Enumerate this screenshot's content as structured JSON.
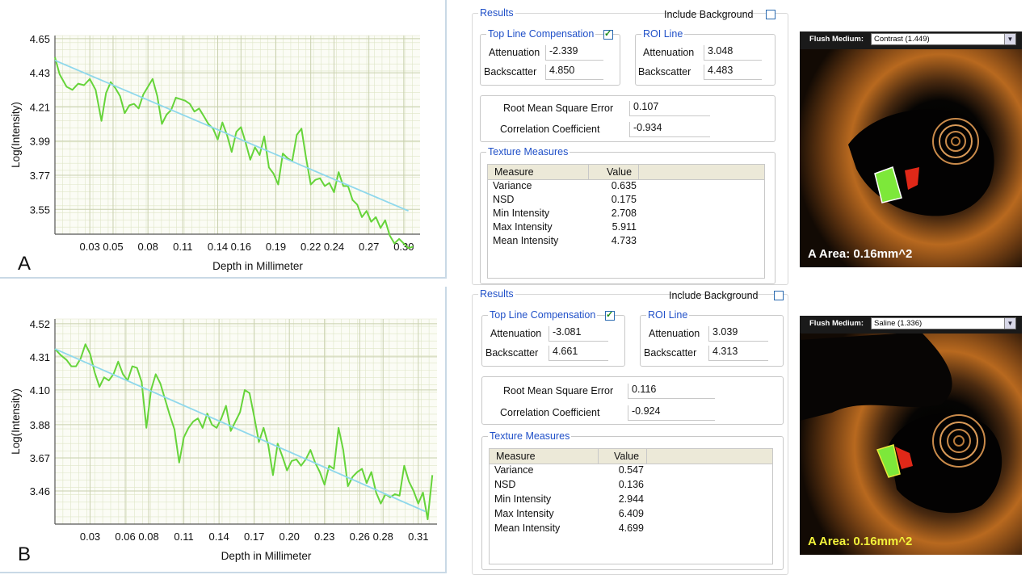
{
  "panel_labels": [
    "A",
    "B"
  ],
  "chart_data": [
    {
      "type": "line",
      "panel": "A",
      "xlabel": "Depth in Millimeter",
      "ylabel": "Log(Intensity)",
      "xticks": [
        "0.03",
        "0.05",
        "0.08",
        "0.11",
        "0.14",
        "0.16",
        "0.19",
        "0.22",
        "0.24",
        "0.27",
        "0.30"
      ],
      "yticks": [
        "3.55",
        "3.77",
        "3.99",
        "4.21",
        "4.43",
        "4.65"
      ],
      "xlim": [
        0.0,
        0.314
      ],
      "ylim": [
        3.39,
        4.67
      ],
      "grid": true,
      "series": [
        {
          "color": "#66d43a",
          "x": [
            0.0,
            0.004,
            0.01,
            0.015,
            0.02,
            0.025,
            0.03,
            0.035,
            0.04,
            0.044,
            0.048,
            0.052,
            0.056,
            0.06,
            0.064,
            0.068,
            0.072,
            0.076,
            0.08,
            0.084,
            0.088,
            0.092,
            0.096,
            0.1,
            0.104,
            0.108,
            0.112,
            0.116,
            0.12,
            0.124,
            0.128,
            0.132,
            0.136,
            0.14,
            0.144,
            0.148,
            0.152,
            0.156,
            0.16,
            0.164,
            0.168,
            0.172,
            0.176,
            0.18,
            0.184,
            0.188,
            0.192,
            0.196,
            0.2,
            0.204,
            0.208,
            0.212,
            0.216,
            0.22,
            0.224,
            0.228,
            0.232,
            0.236,
            0.24,
            0.244,
            0.248,
            0.252,
            0.256,
            0.26,
            0.264,
            0.268,
            0.272,
            0.276,
            0.28,
            0.284,
            0.288,
            0.292,
            0.296,
            0.3,
            0.304,
            0.308
          ],
          "y": [
            4.53,
            4.42,
            4.34,
            4.32,
            4.36,
            4.35,
            4.39,
            4.32,
            4.12,
            4.3,
            4.37,
            4.33,
            4.28,
            4.17,
            4.22,
            4.23,
            4.2,
            4.29,
            4.34,
            4.39,
            4.28,
            4.1,
            4.16,
            4.19,
            4.27,
            4.26,
            4.25,
            4.23,
            4.18,
            4.2,
            4.15,
            4.1,
            4.07,
            4.0,
            4.11,
            4.03,
            3.92,
            4.05,
            4.08,
            3.98,
            3.87,
            3.95,
            3.9,
            4.02,
            3.82,
            3.78,
            3.71,
            3.91,
            3.88,
            3.86,
            4.03,
            4.07,
            3.88,
            3.71,
            3.74,
            3.75,
            3.7,
            3.72,
            3.66,
            3.79,
            3.7,
            3.7,
            3.61,
            3.58,
            3.5,
            3.54,
            3.47,
            3.5,
            3.43,
            3.48,
            3.38,
            3.33,
            3.36,
            3.33,
            3.3,
            3.31
          ]
        },
        {
          "color": "#8fd8ec",
          "x": [
            0.0,
            0.304
          ],
          "y": [
            4.51,
            3.54
          ]
        }
      ]
    },
    {
      "type": "line",
      "panel": "B",
      "xlabel": "Depth in Millimeter",
      "ylabel": "Log(Intensity)",
      "xticks": [
        "0.03",
        "0.06",
        "0.08",
        "0.11",
        "0.14",
        "0.17",
        "0.20",
        "0.23",
        "0.26",
        "0.28",
        "0.31"
      ],
      "yticks": [
        "3.46",
        "3.67",
        "3.88",
        "4.10",
        "4.31",
        "4.52"
      ],
      "xlim": [
        0.0,
        0.326
      ],
      "ylim": [
        3.25,
        4.55
      ],
      "grid": true,
      "series": [
        {
          "color": "#66d43a",
          "x": [
            0.0,
            0.005,
            0.01,
            0.014,
            0.018,
            0.022,
            0.026,
            0.03,
            0.034,
            0.038,
            0.042,
            0.046,
            0.05,
            0.054,
            0.058,
            0.062,
            0.066,
            0.07,
            0.074,
            0.078,
            0.082,
            0.086,
            0.09,
            0.094,
            0.098,
            0.102,
            0.106,
            0.11,
            0.114,
            0.118,
            0.122,
            0.126,
            0.13,
            0.134,
            0.138,
            0.142,
            0.146,
            0.15,
            0.154,
            0.158,
            0.162,
            0.166,
            0.17,
            0.174,
            0.178,
            0.182,
            0.186,
            0.19,
            0.194,
            0.198,
            0.202,
            0.206,
            0.21,
            0.214,
            0.218,
            0.222,
            0.226,
            0.23,
            0.234,
            0.238,
            0.242,
            0.246,
            0.25,
            0.254,
            0.258,
            0.262,
            0.266,
            0.27,
            0.274,
            0.278,
            0.282,
            0.286,
            0.29,
            0.294,
            0.298,
            0.302,
            0.306,
            0.31,
            0.314,
            0.318,
            0.322
          ],
          "y": [
            4.36,
            4.32,
            4.29,
            4.25,
            4.25,
            4.3,
            4.39,
            4.33,
            4.21,
            4.12,
            4.18,
            4.16,
            4.2,
            4.28,
            4.2,
            4.16,
            4.25,
            4.24,
            4.15,
            3.86,
            4.1,
            4.2,
            4.14,
            4.04,
            3.94,
            3.85,
            3.64,
            3.8,
            3.86,
            3.9,
            3.92,
            3.86,
            3.95,
            3.88,
            3.86,
            3.92,
            4.0,
            3.84,
            3.9,
            3.96,
            4.1,
            4.08,
            3.93,
            3.77,
            3.86,
            3.75,
            3.56,
            3.76,
            3.68,
            3.59,
            3.65,
            3.66,
            3.62,
            3.66,
            3.72,
            3.64,
            3.58,
            3.5,
            3.62,
            3.6,
            3.86,
            3.72,
            3.49,
            3.55,
            3.58,
            3.6,
            3.51,
            3.58,
            3.45,
            3.38,
            3.44,
            3.42,
            3.44,
            3.43,
            3.62,
            3.52,
            3.46,
            3.38,
            3.45,
            3.28,
            3.56
          ]
        },
        {
          "color": "#8fd8ec",
          "x": [
            0.0,
            0.316
          ],
          "y": [
            4.36,
            3.33
          ]
        }
      ]
    }
  ],
  "results": [
    {
      "title": "Results",
      "include_background_label": "Include Background",
      "top_line_title": "Top Line Compensation",
      "top_attenuation_label": "Attenuation",
      "top_attenuation": "-2.339",
      "top_backscatter_label": "Backscatter",
      "top_backscatter": "4.850",
      "roi_title": "ROI Line",
      "roi_attenuation_label": "Attenuation",
      "roi_attenuation": "3.048",
      "roi_backscatter_label": "Backscatter",
      "roi_backscatter": "4.483",
      "rmse_label": "Root Mean Square Error",
      "rmse": "0.107",
      "corr_label": "Correlation Coefficient",
      "corr": "-0.934",
      "texture_title": "Texture Measures",
      "col_measure": "Measure",
      "col_value": "Value",
      "rows": [
        {
          "measure": "Variance",
          "value": "0.635"
        },
        {
          "measure": "NSD",
          "value": "0.175"
        },
        {
          "measure": "Min Intensity",
          "value": "2.708"
        },
        {
          "measure": "Max Intensity",
          "value": "5.911"
        },
        {
          "measure": "Mean Intensity",
          "value": "4.733"
        }
      ]
    },
    {
      "title": "Results",
      "include_background_label": "Include Background",
      "top_line_title": "Top Line Compensation",
      "top_attenuation_label": "Attenuation",
      "top_attenuation": "-3.081",
      "top_backscatter_label": "Backscatter",
      "top_backscatter": "4.661",
      "roi_title": "ROI Line",
      "roi_attenuation_label": "Attenuation",
      "roi_attenuation": "3.039",
      "roi_backscatter_label": "Backscatter",
      "roi_backscatter": "4.313",
      "rmse_label": "Root Mean Square Error",
      "rmse": "0.116",
      "corr_label": "Correlation Coefficient",
      "corr": "-0.924",
      "texture_title": "Texture Measures",
      "col_measure": "Measure",
      "col_value": "Value",
      "rows": [
        {
          "measure": "Variance",
          "value": "0.547"
        },
        {
          "measure": "NSD",
          "value": "0.136"
        },
        {
          "measure": "Min Intensity",
          "value": "2.944"
        },
        {
          "measure": "Max Intensity",
          "value": "6.409"
        },
        {
          "measure": "Mean Intensity",
          "value": "4.699"
        }
      ]
    }
  ],
  "oct_images": [
    {
      "flush_label": "Flush Medium:",
      "flush_value": "Contrast (1.449)",
      "area_label": "A Area: 0.16mm^2",
      "area_color": "#ffffff",
      "roi_color": "#7de83a"
    },
    {
      "flush_label": "Flush Medium:",
      "flush_value": "Saline (1.336)",
      "area_label": "A Area: 0.16mm^2",
      "area_color": "#f2f23a",
      "roi_color": "#7de83a"
    }
  ],
  "colors": {
    "data_line": "#66d43a",
    "fit_line": "#8fd8ec",
    "grid": "#dfe6c8",
    "group_title": "#2050c8"
  }
}
